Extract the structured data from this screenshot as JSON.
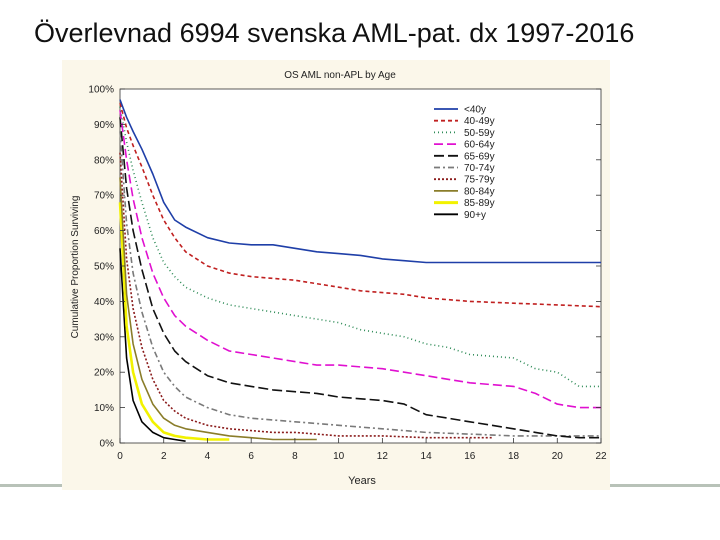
{
  "slide": {
    "title": "Överlevnad 6994 svenska AML-pat. dx 1997-2016"
  },
  "chart_data": {
    "type": "line",
    "title": "OS AML non-APL by Age",
    "xlabel": "Years",
    "ylabel": "Cumulative Proportion Surviving",
    "xlim": [
      0,
      22
    ],
    "ylim": [
      0,
      100
    ],
    "x_ticks": [
      "0",
      "2",
      "4",
      "6",
      "8",
      "10",
      "12",
      "14",
      "16",
      "18",
      "20",
      "22"
    ],
    "y_ticks": [
      "0%",
      "10%",
      "20%",
      "30%",
      "40%",
      "50%",
      "60%",
      "70%",
      "80%",
      "90%",
      "100%"
    ],
    "grid": false,
    "legend_position": "top-right",
    "series": [
      {
        "name": "<40y",
        "color": "#1f3fa8",
        "dash": "solid",
        "points": [
          [
            0,
            97
          ],
          [
            0.3,
            92
          ],
          [
            0.6,
            88
          ],
          [
            1,
            83
          ],
          [
            1.5,
            76
          ],
          [
            2,
            68
          ],
          [
            2.5,
            63
          ],
          [
            3,
            61
          ],
          [
            4,
            58
          ],
          [
            5,
            56.5
          ],
          [
            6,
            56
          ],
          [
            7,
            56
          ],
          [
            8,
            55
          ],
          [
            9,
            54
          ],
          [
            10,
            53.5
          ],
          [
            11,
            53
          ],
          [
            12,
            52
          ],
          [
            13,
            51.5
          ],
          [
            14,
            51
          ],
          [
            16,
            51
          ],
          [
            18,
            51
          ],
          [
            20,
            51
          ],
          [
            22,
            51
          ]
        ]
      },
      {
        "name": "40-49y",
        "color": "#c02020",
        "dash": "4 3",
        "points": [
          [
            0,
            96
          ],
          [
            0.3,
            89
          ],
          [
            0.6,
            84
          ],
          [
            1,
            78
          ],
          [
            1.5,
            70
          ],
          [
            2,
            63
          ],
          [
            2.5,
            58
          ],
          [
            3,
            54
          ],
          [
            4,
            50
          ],
          [
            5,
            48
          ],
          [
            6,
            47
          ],
          [
            7,
            46.5
          ],
          [
            8,
            46
          ],
          [
            9,
            45
          ],
          [
            10,
            44
          ],
          [
            11,
            43
          ],
          [
            12,
            42.5
          ],
          [
            13,
            42
          ],
          [
            14,
            41
          ],
          [
            16,
            40
          ],
          [
            18,
            39.5
          ],
          [
            20,
            39
          ],
          [
            22,
            38.5
          ]
        ]
      },
      {
        "name": "50-59y",
        "color": "#2e8b57",
        "dash": "1 3",
        "points": [
          [
            0,
            95
          ],
          [
            0.3,
            85
          ],
          [
            0.6,
            77
          ],
          [
            1,
            68
          ],
          [
            1.5,
            58
          ],
          [
            2,
            51
          ],
          [
            2.5,
            47
          ],
          [
            3,
            44
          ],
          [
            4,
            41
          ],
          [
            5,
            39
          ],
          [
            6,
            38
          ],
          [
            7,
            37
          ],
          [
            8,
            36
          ],
          [
            9,
            35
          ],
          [
            10,
            34
          ],
          [
            11,
            32
          ],
          [
            12,
            31
          ],
          [
            13,
            30
          ],
          [
            14,
            28
          ],
          [
            15,
            27
          ],
          [
            16,
            25
          ],
          [
            18,
            24
          ],
          [
            19,
            21
          ],
          [
            20,
            20
          ],
          [
            21,
            16
          ],
          [
            22,
            16
          ]
        ]
      },
      {
        "name": "60-64y",
        "color": "#e010d0",
        "dash": "9 4",
        "points": [
          [
            0,
            94
          ],
          [
            0.3,
            80
          ],
          [
            0.6,
            69
          ],
          [
            1,
            58
          ],
          [
            1.5,
            48
          ],
          [
            2,
            41
          ],
          [
            2.5,
            36
          ],
          [
            3,
            33
          ],
          [
            4,
            29
          ],
          [
            5,
            26
          ],
          [
            6,
            25
          ],
          [
            7,
            24
          ],
          [
            8,
            23
          ],
          [
            9,
            22
          ],
          [
            10,
            22
          ],
          [
            11,
            21.5
          ],
          [
            12,
            21
          ],
          [
            13,
            20
          ],
          [
            14,
            19
          ],
          [
            15,
            18
          ],
          [
            16,
            17
          ],
          [
            18,
            16
          ],
          [
            19,
            14
          ],
          [
            20,
            11
          ],
          [
            21,
            10
          ],
          [
            22,
            10
          ]
        ]
      },
      {
        "name": "65-69y",
        "color": "#111111",
        "dash": "10 4",
        "points": [
          [
            0,
            92
          ],
          [
            0.3,
            72
          ],
          [
            0.6,
            60
          ],
          [
            1,
            49
          ],
          [
            1.5,
            38
          ],
          [
            2,
            31
          ],
          [
            2.5,
            26
          ],
          [
            3,
            23
          ],
          [
            4,
            19
          ],
          [
            5,
            17
          ],
          [
            6,
            16
          ],
          [
            7,
            15
          ],
          [
            8,
            14.5
          ],
          [
            9,
            14
          ],
          [
            10,
            13
          ],
          [
            11,
            12.5
          ],
          [
            12,
            12
          ],
          [
            13,
            11
          ],
          [
            14,
            8
          ],
          [
            15,
            7
          ],
          [
            16,
            6
          ],
          [
            17,
            5
          ],
          [
            18,
            4
          ],
          [
            19,
            3
          ],
          [
            20,
            2
          ],
          [
            21,
            1.5
          ],
          [
            22,
            1.5
          ]
        ]
      },
      {
        "name": "70-74y",
        "color": "#7a7a7a",
        "dash": "6 3 2 3",
        "points": [
          [
            0,
            88
          ],
          [
            0.3,
            62
          ],
          [
            0.6,
            48
          ],
          [
            1,
            37
          ],
          [
            1.5,
            27
          ],
          [
            2,
            20
          ],
          [
            2.5,
            16
          ],
          [
            3,
            13
          ],
          [
            4,
            10
          ],
          [
            5,
            8
          ],
          [
            6,
            7
          ],
          [
            7,
            6.5
          ],
          [
            8,
            6
          ],
          [
            9,
            5.5
          ],
          [
            10,
            5
          ],
          [
            11,
            4.5
          ],
          [
            12,
            4
          ],
          [
            13,
            3.5
          ],
          [
            14,
            3
          ],
          [
            16,
            2.5
          ],
          [
            18,
            2
          ],
          [
            20,
            2
          ],
          [
            22,
            2
          ]
        ]
      },
      {
        "name": "75-79y",
        "color": "#8b1c1c",
        "dash": "2 2",
        "points": [
          [
            0,
            82
          ],
          [
            0.3,
            52
          ],
          [
            0.6,
            38
          ],
          [
            1,
            27
          ],
          [
            1.5,
            18
          ],
          [
            2,
            12
          ],
          [
            2.5,
            9
          ],
          [
            3,
            7
          ],
          [
            4,
            5
          ],
          [
            5,
            4
          ],
          [
            6,
            3.5
          ],
          [
            7,
            3
          ],
          [
            8,
            3
          ],
          [
            9,
            2.5
          ],
          [
            10,
            2
          ],
          [
            12,
            2
          ],
          [
            14,
            1.5
          ],
          [
            16,
            1.5
          ],
          [
            17,
            1.5
          ]
        ]
      },
      {
        "name": "80-84y",
        "color": "#8a7d2a",
        "dash": "solid",
        "points": [
          [
            0,
            75
          ],
          [
            0.3,
            42
          ],
          [
            0.6,
            28
          ],
          [
            1,
            18
          ],
          [
            1.5,
            11
          ],
          [
            2,
            7
          ],
          [
            2.5,
            5
          ],
          [
            3,
            4
          ],
          [
            4,
            3
          ],
          [
            5,
            2
          ],
          [
            6,
            1.5
          ],
          [
            7,
            1
          ],
          [
            8,
            1
          ],
          [
            9,
            1
          ]
        ]
      },
      {
        "name": "85-89y",
        "color": "#f2f200",
        "dash": "solid",
        "points": [
          [
            0,
            68
          ],
          [
            0.3,
            33
          ],
          [
            0.6,
            20
          ],
          [
            1,
            11
          ],
          [
            1.5,
            6
          ],
          [
            2,
            3
          ],
          [
            2.5,
            2
          ],
          [
            3,
            1.5
          ],
          [
            4,
            1
          ],
          [
            5,
            1
          ]
        ]
      },
      {
        "name": "90+y",
        "color": "#000000",
        "dash": "solid",
        "points": [
          [
            0,
            55
          ],
          [
            0.3,
            24
          ],
          [
            0.6,
            12
          ],
          [
            1,
            6
          ],
          [
            1.5,
            3
          ],
          [
            2,
            1.5
          ],
          [
            2.5,
            1
          ],
          [
            3,
            0.5
          ]
        ]
      }
    ]
  }
}
